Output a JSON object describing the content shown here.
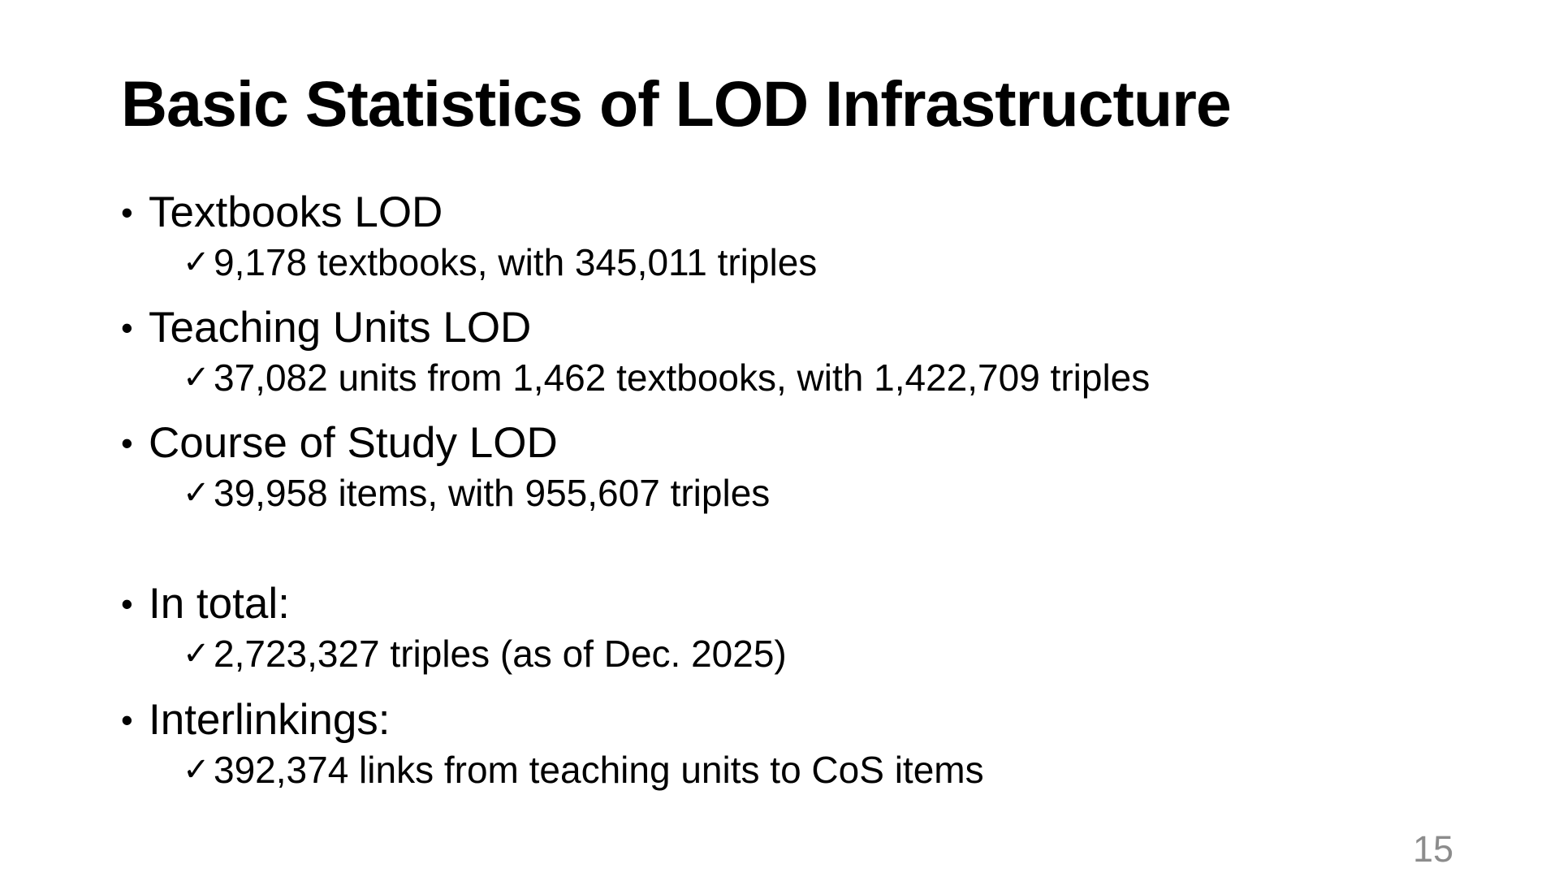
{
  "slide": {
    "title": "Basic Statistics of LOD Infrastructure",
    "bullets": [
      {
        "label": "Textbooks LOD",
        "detail": "9,178 textbooks, with 345,011 triples"
      },
      {
        "label": "Teaching Units LOD",
        "detail": "37,082 units from 1,462 textbooks, with 1,422,709 triples"
      },
      {
        "label": "Course of Study LOD",
        "detail": "39,958 items, with 955,607 triples"
      },
      {
        "label": "In total:",
        "detail": "2,723,327 triples (as of Dec. 2025)"
      },
      {
        "label": "Interlinkings:",
        "detail": "392,374 links from teaching units to CoS items"
      }
    ],
    "bullet_glyph": "•",
    "check_glyph": "✓",
    "page_number": "15"
  }
}
